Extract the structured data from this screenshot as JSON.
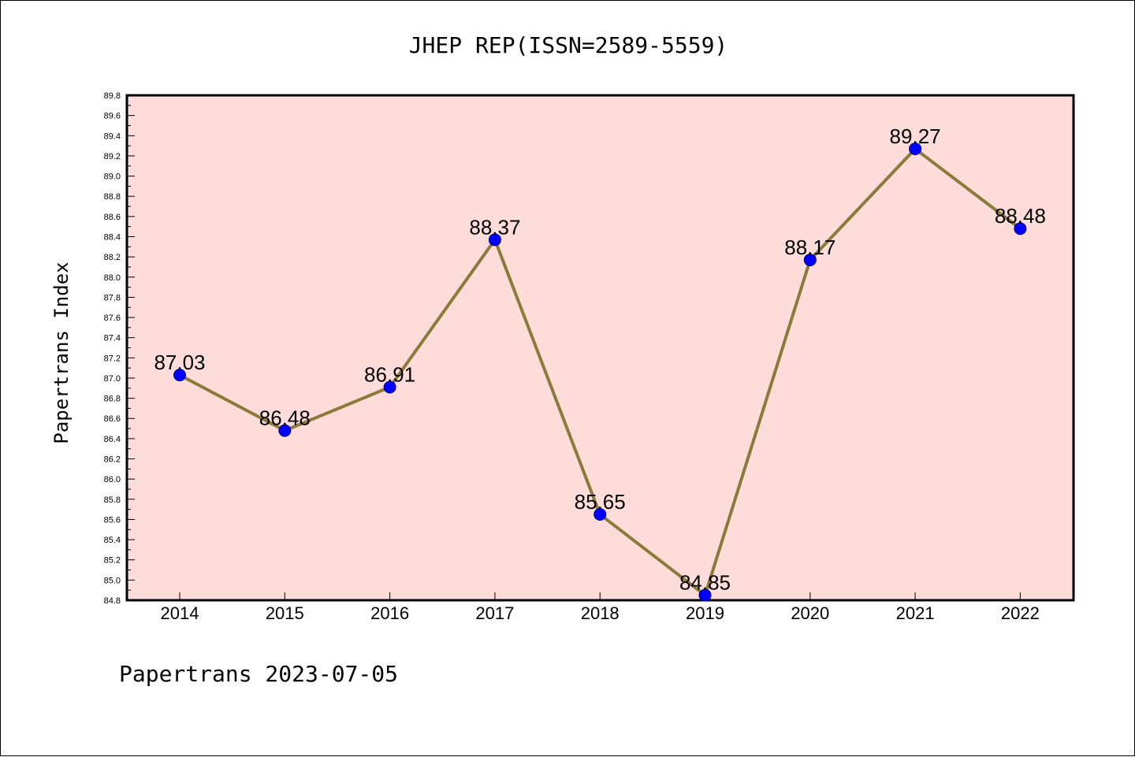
{
  "chart_data": {
    "type": "line",
    "title": "JHEP REP(ISSN=2589-5559)",
    "ylabel": "Papertrans Index",
    "xlabel": "",
    "categories": [
      "2014",
      "2015",
      "2016",
      "2017",
      "2018",
      "2019",
      "2020",
      "2021",
      "2022"
    ],
    "series": [
      {
        "values": [
          87.03,
          86.48,
          86.91,
          88.37,
          85.65,
          84.85,
          88.17,
          89.27,
          88.48
        ]
      }
    ],
    "data_labels": [
      "87.03",
      "86.48",
      "86.91",
      "88.37",
      "85.65",
      "84.85",
      "88.17",
      "89.27",
      "88.48"
    ],
    "ylim": [
      84.8,
      89.8
    ],
    "yticks": [
      "84.8",
      "85.0",
      "85.2",
      "85.4",
      "85.6",
      "85.8",
      "86.0",
      "86.2",
      "86.4",
      "86.6",
      "86.8",
      "87.0",
      "87.2",
      "87.4",
      "87.6",
      "87.8",
      "88.0",
      "88.2",
      "88.4",
      "88.6",
      "88.8",
      "89.0",
      "89.2",
      "89.4",
      "89.6",
      "89.8"
    ],
    "grid": false,
    "legend": "none",
    "colors": {
      "plot_background": "#fddcda",
      "line": "#8c7a3a",
      "marker": "#0000ff"
    }
  },
  "footer": "Papertrans 2023-07-05"
}
